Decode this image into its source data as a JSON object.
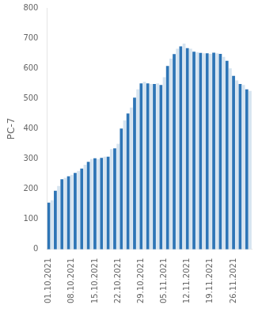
{
  "chart_data": {
    "type": "bar",
    "y_label": "PC-7",
    "categories": [
      "01.10.2021",
      null,
      null,
      null,
      null,
      null,
      null,
      "08.10.2021",
      null,
      null,
      null,
      null,
      null,
      null,
      "15.10.2021",
      null,
      null,
      null,
      null,
      null,
      null,
      "22.10.2021",
      null,
      null,
      null,
      null,
      null,
      null,
      "29.10.2021",
      null,
      null,
      null,
      null,
      null,
      null,
      "05.11.2021",
      null,
      null,
      null,
      null,
      null,
      null,
      "12.11.2021",
      null,
      null,
      null,
      null,
      null,
      null,
      "19.11.2021",
      null,
      null,
      null,
      null,
      null,
      null,
      "26.11.2021",
      null,
      null,
      null,
      null,
      null
    ],
    "values": [
      155,
      163,
      194,
      210,
      232,
      237,
      242,
      247,
      253,
      260,
      268,
      280,
      290,
      299,
      302,
      299,
      303,
      307,
      307,
      332,
      335,
      350,
      400,
      427,
      450,
      470,
      503,
      530,
      550,
      555,
      550,
      548,
      548,
      550,
      545,
      570,
      608,
      632,
      647,
      665,
      673,
      682,
      667,
      665,
      655,
      653,
      651,
      650,
      650,
      648,
      652,
      650,
      648,
      638,
      625,
      600,
      575,
      560,
      548,
      545,
      530,
      525
    ],
    "colors": [
      "#2E75B6",
      "#D6E4F0",
      "#2E75B6",
      "#D6E4F0",
      "#2E75B6",
      "#D6E4F0",
      "#2E75B6",
      "#D6E4F0",
      "#2E75B6",
      "#D6E4F0",
      "#2E75B6",
      "#D6E4F0",
      "#2E75B6",
      "#D6E4F0",
      "#2E75B6",
      "#D6E4F0",
      "#2E75B6",
      "#D6E4F0",
      "#2E75B6",
      "#D6E4F0",
      "#2E75B6",
      "#D6E4F0",
      "#2E75B6",
      "#D6E4F0",
      "#2E75B6",
      "#D6E4F0",
      "#2E75B6",
      "#D6E4F0",
      "#2E75B6",
      "#D6E4F0",
      "#2E75B6",
      "#D6E4F0",
      "#2E75B6",
      "#D6E4F0",
      "#2E75B6",
      "#D6E4F0",
      "#2E75B6",
      "#D6E4F0",
      "#2E75B6",
      "#D6E4F0",
      "#2E75B6",
      "#D6E4F0",
      "#2E75B6",
      "#D6E4F0",
      "#2E75B6",
      "#D6E4F0",
      "#2E75B6",
      "#D6E4F0",
      "#2E75B6",
      "#D6E4F0",
      "#2E75B6",
      "#D6E4F0",
      "#2E75B6",
      "#D6E4F0",
      "#2E75B6",
      "#D6E4F0",
      "#2E75B6",
      "#D6E4F0",
      "#2E75B6",
      "#D6E4F0",
      "#2E75B6",
      "#D6E4F0"
    ],
    "ylim": [
      0,
      800
    ],
    "yticks": [
      0,
      100,
      200,
      300,
      400,
      500,
      600,
      700,
      800
    ],
    "grid": false
  }
}
